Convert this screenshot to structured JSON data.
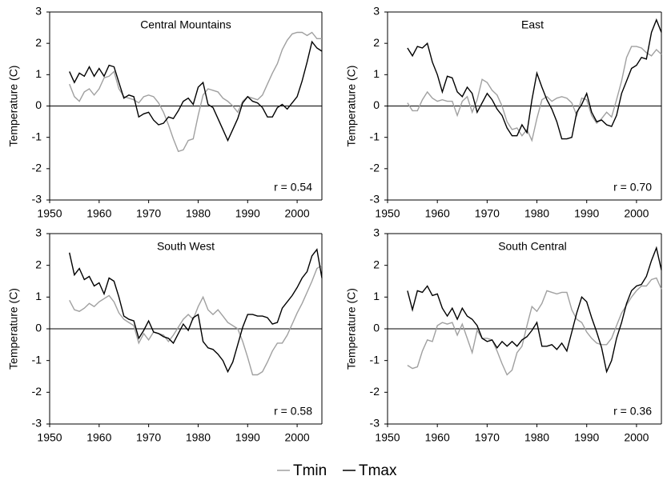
{
  "chart_data": [
    {
      "type": "line",
      "title": "Central Mountains",
      "annotation": "r = 0.54",
      "y_label": "Temperature (C)",
      "x": [
        1954,
        1955,
        1956,
        1957,
        1958,
        1959,
        1960,
        1961,
        1962,
        1963,
        1964,
        1965,
        1966,
        1967,
        1968,
        1969,
        1970,
        1971,
        1972,
        1973,
        1974,
        1975,
        1976,
        1977,
        1978,
        1979,
        1980,
        1981,
        1982,
        1983,
        1984,
        1985,
        1986,
        1987,
        1988,
        1989,
        1990,
        1991,
        1992,
        1993,
        1994,
        1995,
        1996,
        1997,
        1998,
        1999,
        2000,
        2001,
        2002,
        2003,
        2004,
        2005
      ],
      "series": [
        {
          "name": "Tmin",
          "color": "#a0a0a0",
          "values": [
            0.7,
            0.3,
            0.15,
            0.45,
            0.55,
            0.35,
            0.55,
            0.9,
            0.95,
            1.1,
            0.55,
            0.3,
            0.25,
            0.2,
            0.1,
            0.3,
            0.35,
            0.3,
            0.1,
            -0.2,
            -0.6,
            -1.05,
            -1.45,
            -1.4,
            -1.1,
            -1.05,
            -0.3,
            0.35,
            0.55,
            0.5,
            0.45,
            0.25,
            0.15,
            0.0,
            -0.2,
            0.15,
            0.3,
            0.25,
            0.2,
            0.35,
            0.7,
            1.05,
            1.35,
            1.8,
            2.1,
            2.3,
            2.35,
            2.35,
            2.25,
            2.35,
            2.15,
            2.15
          ]
        },
        {
          "name": "Tmax",
          "color": "#000000",
          "values": [
            1.1,
            0.75,
            1.05,
            0.95,
            1.25,
            0.95,
            1.2,
            0.95,
            1.3,
            1.25,
            0.75,
            0.25,
            0.35,
            0.3,
            -0.35,
            -0.25,
            -0.2,
            -0.45,
            -0.6,
            -0.55,
            -0.35,
            -0.4,
            -0.15,
            0.15,
            0.25,
            0.05,
            0.6,
            0.75,
            0.05,
            -0.05,
            -0.4,
            -0.75,
            -1.1,
            -0.75,
            -0.4,
            0.1,
            0.3,
            0.15,
            0.1,
            -0.05,
            -0.35,
            -0.35,
            -0.05,
            0.05,
            -0.1,
            0.1,
            0.3,
            0.8,
            1.4,
            2.05,
            1.85,
            1.75
          ]
        }
      ],
      "xlim": [
        1950,
        2005
      ],
      "xticks": [
        1950,
        1960,
        1970,
        1980,
        1990,
        2000
      ],
      "ylim": [
        -3,
        3
      ],
      "yticks": [
        -3,
        -2,
        -1,
        0,
        1,
        2,
        3
      ]
    },
    {
      "type": "line",
      "title": "East",
      "annotation": "r = 0.70",
      "y_label": "Temperature (C)",
      "x": [
        1954,
        1955,
        1956,
        1957,
        1958,
        1959,
        1960,
        1961,
        1962,
        1963,
        1964,
        1965,
        1966,
        1967,
        1968,
        1969,
        1970,
        1971,
        1972,
        1973,
        1974,
        1975,
        1976,
        1977,
        1978,
        1979,
        1980,
        1981,
        1982,
        1983,
        1984,
        1985,
        1986,
        1987,
        1988,
        1989,
        1990,
        1991,
        1992,
        1993,
        1994,
        1995,
        1996,
        1997,
        1998,
        1999,
        2000,
        2001,
        2002,
        2003,
        2004,
        2005
      ],
      "series": [
        {
          "name": "Tmin",
          "color": "#a0a0a0",
          "values": [
            0.1,
            -0.15,
            -0.15,
            0.2,
            0.45,
            0.25,
            0.15,
            0.2,
            0.15,
            0.15,
            -0.3,
            0.15,
            0.3,
            -0.2,
            0.2,
            0.85,
            0.75,
            0.5,
            0.35,
            0.0,
            -0.5,
            -0.75,
            -0.7,
            -0.95,
            -0.75,
            -1.1,
            -0.4,
            0.2,
            0.3,
            0.15,
            0.25,
            0.3,
            0.25,
            0.1,
            -0.3,
            0.25,
            0.2,
            -0.3,
            -0.55,
            -0.4,
            -0.2,
            -0.35,
            0.2,
            0.8,
            1.55,
            1.9,
            1.9,
            1.85,
            1.7,
            1.6,
            1.8,
            1.65
          ]
        },
        {
          "name": "Tmax",
          "color": "#000000",
          "values": [
            1.85,
            1.6,
            1.9,
            1.85,
            2.0,
            1.4,
            1.0,
            0.45,
            0.95,
            0.9,
            0.45,
            0.3,
            0.6,
            0.4,
            -0.2,
            0.1,
            0.4,
            0.2,
            -0.1,
            -0.3,
            -0.7,
            -0.95,
            -0.95,
            -0.6,
            -0.85,
            0.2,
            1.05,
            0.6,
            0.2,
            -0.1,
            -0.5,
            -1.05,
            -1.05,
            -1.0,
            -0.2,
            0.05,
            0.4,
            -0.2,
            -0.5,
            -0.45,
            -0.6,
            -0.65,
            -0.3,
            0.4,
            0.8,
            1.2,
            1.3,
            1.55,
            1.5,
            2.35,
            2.75,
            2.35
          ]
        }
      ],
      "xlim": [
        1950,
        2005
      ],
      "xticks": [
        1950,
        1960,
        1970,
        1980,
        1990,
        2000
      ],
      "ylim": [
        -3,
        3
      ],
      "yticks": [
        -3,
        -2,
        -1,
        0,
        1,
        2,
        3
      ]
    },
    {
      "type": "line",
      "title": "South West",
      "annotation": "r = 0.58",
      "y_label": "Temperature (C)",
      "x": [
        1954,
        1955,
        1956,
        1957,
        1958,
        1959,
        1960,
        1961,
        1962,
        1963,
        1964,
        1965,
        1966,
        1967,
        1968,
        1969,
        1970,
        1971,
        1972,
        1973,
        1974,
        1975,
        1976,
        1977,
        1978,
        1979,
        1980,
        1981,
        1982,
        1983,
        1984,
        1985,
        1986,
        1987,
        1988,
        1989,
        1990,
        1991,
        1992,
        1993,
        1994,
        1995,
        1996,
        1997,
        1998,
        1999,
        2000,
        2001,
        2002,
        2003,
        2004,
        2005
      ],
      "series": [
        {
          "name": "Tmin",
          "color": "#a0a0a0",
          "values": [
            0.9,
            0.6,
            0.55,
            0.65,
            0.8,
            0.7,
            0.85,
            0.95,
            1.05,
            0.85,
            0.5,
            0.3,
            0.2,
            0.1,
            -0.45,
            -0.15,
            -0.35,
            -0.1,
            -0.15,
            -0.2,
            -0.4,
            -0.2,
            0.05,
            0.3,
            0.45,
            0.3,
            0.7,
            1.0,
            0.6,
            0.45,
            0.6,
            0.4,
            0.2,
            0.1,
            0.0,
            -0.4,
            -0.9,
            -1.45,
            -1.45,
            -1.35,
            -1.05,
            -0.7,
            -0.45,
            -0.45,
            -0.2,
            0.15,
            0.5,
            0.8,
            1.15,
            1.5,
            1.9,
            2.0
          ]
        },
        {
          "name": "Tmax",
          "color": "#000000",
          "values": [
            2.4,
            1.7,
            1.9,
            1.55,
            1.65,
            1.35,
            1.45,
            1.1,
            1.6,
            1.5,
            1.0,
            0.4,
            0.3,
            0.25,
            -0.3,
            -0.05,
            0.25,
            -0.1,
            -0.15,
            -0.25,
            -0.3,
            -0.45,
            -0.15,
            0.15,
            -0.05,
            0.35,
            0.45,
            -0.4,
            -0.6,
            -0.65,
            -0.8,
            -1.0,
            -1.35,
            -1.05,
            -0.5,
            0.05,
            0.45,
            0.45,
            0.4,
            0.4,
            0.35,
            0.15,
            0.2,
            0.65,
            0.85,
            1.05,
            1.3,
            1.6,
            1.8,
            2.3,
            2.5,
            1.6
          ]
        }
      ],
      "xlim": [
        1950,
        2005
      ],
      "xticks": [
        1950,
        1960,
        1970,
        1980,
        1990,
        2000
      ],
      "ylim": [
        -3,
        3
      ],
      "yticks": [
        -3,
        -2,
        -1,
        0,
        1,
        2,
        3
      ]
    },
    {
      "type": "line",
      "title": "South Central",
      "annotation": "r = 0.36",
      "y_label": "Temperature (C)",
      "x": [
        1954,
        1955,
        1956,
        1957,
        1958,
        1959,
        1960,
        1961,
        1962,
        1963,
        1964,
        1965,
        1966,
        1967,
        1968,
        1969,
        1970,
        1971,
        1972,
        1973,
        1974,
        1975,
        1976,
        1977,
        1978,
        1979,
        1980,
        1981,
        1982,
        1983,
        1984,
        1985,
        1986,
        1987,
        1988,
        1989,
        1990,
        1991,
        1992,
        1993,
        1994,
        1995,
        1996,
        1997,
        1998,
        1999,
        2000,
        2001,
        2002,
        2003,
        2004,
        2005
      ],
      "series": [
        {
          "name": "Tmin",
          "color": "#a0a0a0",
          "values": [
            -1.15,
            -1.25,
            -1.2,
            -0.7,
            -0.35,
            -0.4,
            0.1,
            0.2,
            0.15,
            0.2,
            -0.2,
            0.15,
            -0.3,
            -0.75,
            -0.05,
            -0.3,
            -0.3,
            -0.35,
            -0.7,
            -1.1,
            -1.45,
            -1.3,
            -0.75,
            -0.55,
            0.1,
            0.7,
            0.55,
            0.8,
            1.2,
            1.15,
            1.1,
            1.15,
            1.15,
            0.6,
            0.3,
            0.2,
            -0.1,
            -0.3,
            -0.45,
            -0.5,
            -0.5,
            -0.3,
            0.1,
            0.5,
            0.75,
            1.0,
            1.2,
            1.35,
            1.35,
            1.55,
            1.6,
            1.25
          ]
        },
        {
          "name": "Tmax",
          "color": "#000000",
          "values": [
            1.2,
            0.6,
            1.2,
            1.15,
            1.35,
            1.05,
            1.1,
            0.65,
            0.4,
            0.65,
            0.3,
            0.65,
            0.4,
            0.3,
            0.1,
            -0.3,
            -0.4,
            -0.35,
            -0.6,
            -0.4,
            -0.55,
            -0.4,
            -0.55,
            -0.35,
            -0.25,
            -0.05,
            0.2,
            -0.55,
            -0.55,
            -0.5,
            -0.65,
            -0.45,
            -0.7,
            -0.1,
            0.5,
            1.0,
            0.85,
            0.35,
            -0.1,
            -0.6,
            -1.35,
            -1.0,
            -0.3,
            0.2,
            0.8,
            1.2,
            1.35,
            1.4,
            1.65,
            2.15,
            2.55,
            1.85
          ]
        }
      ],
      "xlim": [
        1950,
        2005
      ],
      "xticks": [
        1950,
        1960,
        1970,
        1980,
        1990,
        2000
      ],
      "ylim": [
        -3,
        3
      ],
      "yticks": [
        -3,
        -2,
        -1,
        0,
        1,
        2,
        3
      ]
    }
  ]
}
